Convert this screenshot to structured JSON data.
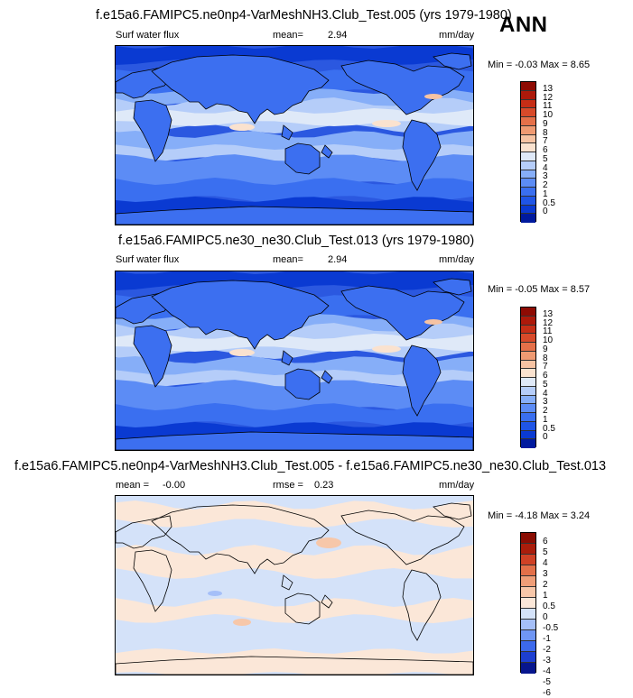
{
  "season": "ANN",
  "colors": {
    "abs_scale": [
      "#001a9e",
      "#0a3ad2",
      "#1f55e6",
      "#3a6ff0",
      "#5c8cf5",
      "#86aef8",
      "#b5cdf9",
      "#dfe9f8",
      "#fae2cf",
      "#f6c3a3",
      "#ef9a72",
      "#e57049",
      "#d84a2a",
      "#c62e16",
      "#ad190a",
      "#8e0b03"
    ],
    "diff_scale": [
      "#07168e",
      "#1d3fd1",
      "#3c69ec",
      "#6f96f4",
      "#a5bff8",
      "#d4e2f9",
      "#fbe7d8",
      "#f7c7a9",
      "#ef9e78",
      "#e37049",
      "#cf4125",
      "#aa1d0b",
      "#8a0d03"
    ],
    "ocean_blue": "#2b58e0",
    "land_blue": "#3c6ff0"
  },
  "chart_data": [
    {
      "type": "heatmap",
      "title": "f.e15a6.FAMIPC5.ne0np4-VarMeshNH3.Club_Test.005 (yrs 1979-1980)",
      "variable": "Surf water flux",
      "mean_label": "mean=",
      "mean_value": "2.94",
      "units": "mm/day",
      "min_max_label": "Min = -0.03 Max = 8.65",
      "min": -0.03,
      "max": 8.65,
      "colorbar_levels": [
        "13",
        "12",
        "11",
        "10",
        "9",
        "8",
        "7",
        "6",
        "5",
        "4",
        "3",
        "2",
        "1",
        "0.5",
        "0"
      ]
    },
    {
      "type": "heatmap",
      "title": "f.e15a6.FAMIPC5.ne30_ne30.Club_Test.013 (yrs 1979-1980)",
      "variable": "Surf water flux",
      "mean_label": "mean=",
      "mean_value": "2.94",
      "units": "mm/day",
      "min_max_label": "Min = -0.05 Max = 8.57",
      "min": -0.05,
      "max": 8.57,
      "colorbar_levels": [
        "13",
        "12",
        "11",
        "10",
        "9",
        "8",
        "7",
        "6",
        "5",
        "4",
        "3",
        "2",
        "1",
        "0.5",
        "0"
      ]
    },
    {
      "type": "heatmap",
      "title": "f.e15a6.FAMIPC5.ne0np4-VarMeshNH3.Club_Test.005 - f.e15a6.FAMIPC5.ne30_ne30.Club_Test.013",
      "mean_label": "mean =",
      "mean_value": "-0.00",
      "rmse_label": "rmse =",
      "rmse_value": "0.23",
      "units": "mm/day",
      "min_max_label": "Min = -4.18 Max = 3.24",
      "min": -4.18,
      "max": 3.24,
      "colorbar_levels": [
        "6",
        "5",
        "4",
        "3",
        "2",
        "1",
        "0.5",
        "0",
        "-0.5",
        "-1",
        "-2",
        "-3",
        "-4",
        "-5",
        "-6"
      ]
    }
  ]
}
